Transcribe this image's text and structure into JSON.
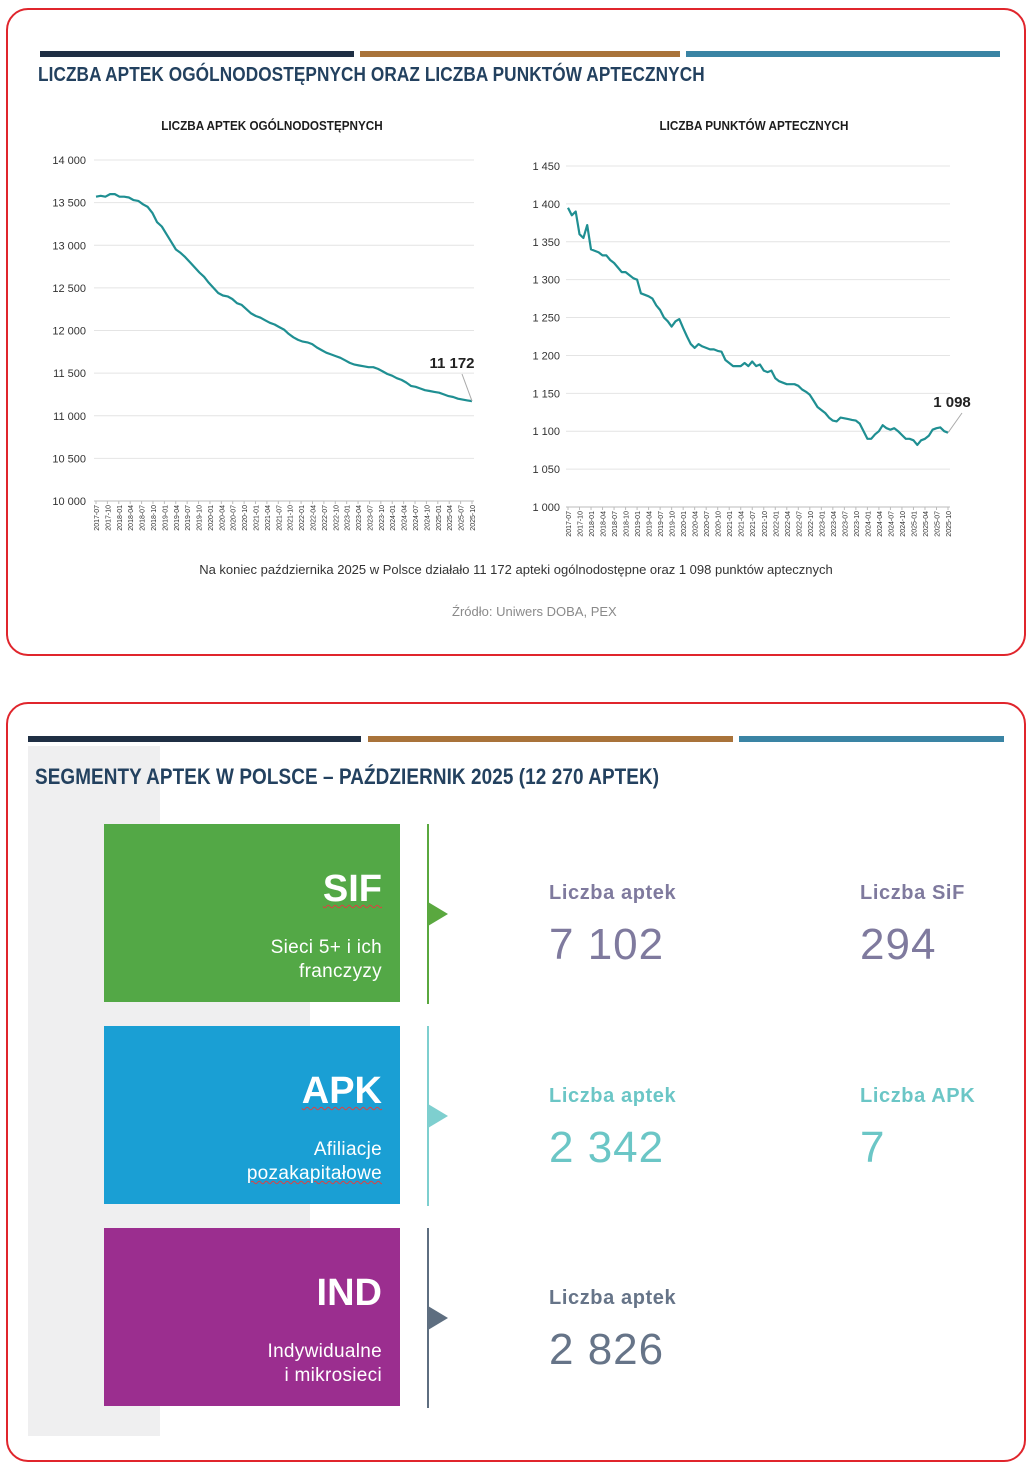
{
  "colors": {
    "border": "#e0252c",
    "bar_dark": "#1f2f44",
    "bar_brown": "#a9733a",
    "bar_teal": "#3a84a4",
    "title": "#23415f",
    "line": "#1f8f92",
    "grid": "#e4e4e4"
  },
  "section1": {
    "title": "LICZBA APTEK OGÓLNODOSTĘPNYCH ORAZ LICZBA PUNKTÓW APTECZNYCH",
    "note": "Na koniec października 2025 w Polsce działało 11 172 apteki ogólnodostępne oraz 1 098 punktów aptecznych",
    "source": "Źródło: Uniwers DOBA, PEX"
  },
  "chart_data": [
    {
      "type": "line",
      "title": "LICZBA APTEK OGÓLNODOSTĘPNYCH",
      "xlabel": "",
      "ylabel": "",
      "ylim": [
        10000,
        14000
      ],
      "y_ticks": [
        10000,
        10500,
        11000,
        11500,
        12000,
        12500,
        13000,
        13500,
        14000
      ],
      "y_tick_labels": [
        "10 000",
        "10 500",
        "11 000",
        "11 500",
        "12 000",
        "12 500",
        "13 000",
        "13 500",
        "14 000"
      ],
      "x_tick_labels": [
        "2017-07",
        "2017-10",
        "2018-01",
        "2018-04",
        "2018-07",
        "2018-10",
        "2019-01",
        "2019-04",
        "2019-07",
        "2019-10",
        "2020-01",
        "2020-04",
        "2020-07",
        "2020-10",
        "2021-01",
        "2021-04",
        "2021-07",
        "2021-10",
        "2022-01",
        "2022-04",
        "2022-07",
        "2022-10",
        "2023-01",
        "2023-04",
        "2023-07",
        "2023-10",
        "2024-01",
        "2024-04",
        "2024-07",
        "2024-10",
        "2025-01",
        "2025-04",
        "2025-07",
        "2025-10"
      ],
      "annotation": "11 172",
      "grid": true,
      "series": [
        {
          "name": "Apteki ogólnodostępne",
          "values": [
            13570,
            13580,
            13570,
            13600,
            13600,
            13570,
            13570,
            13560,
            13530,
            13520,
            13480,
            13450,
            13380,
            13270,
            13220,
            13130,
            13040,
            12950,
            12910,
            12860,
            12800,
            12740,
            12680,
            12630,
            12560,
            12500,
            12440,
            12410,
            12400,
            12370,
            12320,
            12300,
            12250,
            12200,
            12170,
            12150,
            12120,
            12090,
            12070,
            12040,
            12010,
            11960,
            11920,
            11890,
            11870,
            11860,
            11840,
            11800,
            11770,
            11740,
            11720,
            11700,
            11680,
            11650,
            11620,
            11600,
            11590,
            11580,
            11570,
            11570,
            11550,
            11520,
            11490,
            11470,
            11440,
            11420,
            11390,
            11350,
            11340,
            11320,
            11300,
            11290,
            11280,
            11270,
            11250,
            11230,
            11220,
            11200,
            11190,
            11180,
            11172
          ]
        }
      ]
    },
    {
      "type": "line",
      "title": "LICZBA PUNKTÓW APTECZNYCH",
      "xlabel": "",
      "ylabel": "",
      "ylim": [
        1000,
        1450
      ],
      "y_ticks": [
        1000,
        1050,
        1100,
        1150,
        1200,
        1250,
        1300,
        1350,
        1400,
        1450
      ],
      "y_tick_labels": [
        "1 000",
        "1 050",
        "1 100",
        "1 150",
        "1 200",
        "1 250",
        "1 300",
        "1 350",
        "1 400",
        "1 450"
      ],
      "x_tick_labels": [
        "2017-07",
        "2017-10",
        "2018-01",
        "2018-04",
        "2018-07",
        "2018-10",
        "2019-01",
        "2019-04",
        "2019-07",
        "2019-10",
        "2020-01",
        "2020-04",
        "2020-07",
        "2020-10",
        "2021-01",
        "2021-04",
        "2021-07",
        "2021-10",
        "2022-01",
        "2022-04",
        "2022-07",
        "2022-10",
        "2023-01",
        "2023-04",
        "2023-07",
        "2023-10",
        "2024-01",
        "2024-04",
        "2024-07",
        "2024-10",
        "2025-01",
        "2025-04",
        "2025-07",
        "2025-10"
      ],
      "annotation": "1 098",
      "grid": true,
      "series": [
        {
          "name": "Punkty apteczne",
          "values": [
            1395,
            1385,
            1390,
            1360,
            1355,
            1372,
            1340,
            1338,
            1336,
            1332,
            1332,
            1326,
            1322,
            1316,
            1310,
            1310,
            1306,
            1302,
            1300,
            1282,
            1280,
            1278,
            1275,
            1266,
            1260,
            1250,
            1245,
            1238,
            1245,
            1248,
            1236,
            1225,
            1215,
            1210,
            1215,
            1212,
            1210,
            1208,
            1208,
            1206,
            1205,
            1194,
            1190,
            1186,
            1186,
            1186,
            1190,
            1186,
            1192,
            1186,
            1188,
            1180,
            1178,
            1180,
            1170,
            1166,
            1164,
            1162,
            1162,
            1162,
            1160,
            1155,
            1152,
            1148,
            1140,
            1132,
            1128,
            1124,
            1118,
            1114,
            1113,
            1118,
            1117,
            1116,
            1115,
            1114,
            1110,
            1100,
            1090,
            1090,
            1096,
            1100,
            1108,
            1104,
            1102,
            1104,
            1100,
            1095,
            1090,
            1090,
            1088,
            1082,
            1088,
            1090,
            1094,
            1102,
            1104,
            1105,
            1100,
            1098
          ]
        }
      ]
    }
  ],
  "section2": {
    "title": "SEGMENTY APTEK W POLSCE – PAŹDZIERNIK 2025 (12 270 APTEK)",
    "segments": [
      {
        "code": "SIF",
        "desc_line1": "Sieci 5+ i ich",
        "desc_line2": "franczyzy",
        "color": "#53a846",
        "accent": "#5aa83f",
        "text_color": "#7f7a9e",
        "label1": "Liczba aptek",
        "value1": "7 102",
        "label2": "Liczba SiF",
        "value2": "294"
      },
      {
        "code": "APK",
        "desc_line1": "Afiliacje",
        "desc_line2": "pozakapitałowe",
        "color": "#1a9fd4",
        "accent": "#7ecfcf",
        "text_color": "#6bc6c6",
        "label1": "Liczba aptek",
        "value1": "2 342",
        "label2": "Liczba APK",
        "value2": "7"
      },
      {
        "code": "IND",
        "desc_line1": "Indywidualne",
        "desc_line2": "i mikrosieci",
        "color": "#9b2e8f",
        "accent": "#5e6e80",
        "text_color": "#667488",
        "label1": "Liczba aptek",
        "value1": "2 826"
      }
    ]
  }
}
